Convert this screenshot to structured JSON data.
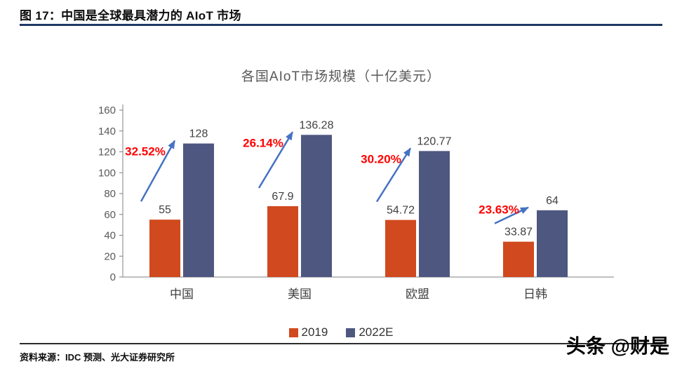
{
  "header": {
    "title": "图 17：中国是全球最具潜力的 AIoT 市场"
  },
  "chart_data": {
    "type": "bar",
    "title": "各国AIoT市场规模（十亿美元）",
    "categories": [
      "中国",
      "美国",
      "欧盟",
      "日韩"
    ],
    "series": [
      {
        "name": "2019",
        "color": "#d1491e",
        "values": [
          55,
          67.9,
          54.72,
          33.87
        ]
      },
      {
        "name": "2022E",
        "color": "#4e5780",
        "values": [
          128,
          136.28,
          120.77,
          64
        ]
      }
    ],
    "value_labels": [
      [
        "55",
        "67.9",
        "54.72",
        "33.87"
      ],
      [
        "128",
        "136.28",
        "120.77",
        "64"
      ]
    ],
    "growth_labels": [
      "32.52%",
      "26.14%",
      "30.20%",
      "23.63%"
    ],
    "growth_color": "#ff0000",
    "arrow_color": "#4472c4",
    "axis_color": "#808080",
    "tick_label_color": "#595959",
    "value_label_color": "#404040",
    "ylim": [
      0,
      160
    ],
    "ytick_step": 20,
    "yticks": [
      0,
      20,
      40,
      60,
      80,
      100,
      120,
      140,
      160
    ],
    "xlabel": "",
    "ylabel": "",
    "grid": false,
    "legend_position": "bottom"
  },
  "footer": {
    "source": "资料来源：IDC 预测、光大证券研究所",
    "watermark": "头条 @财是"
  }
}
